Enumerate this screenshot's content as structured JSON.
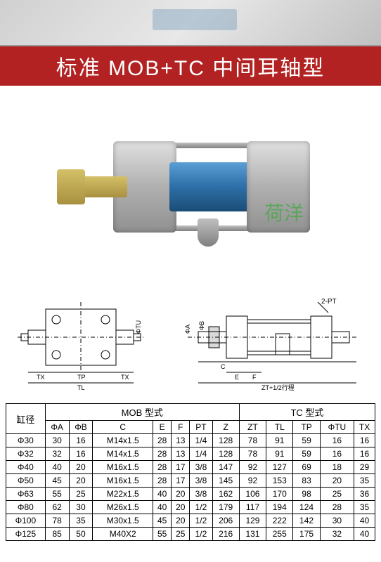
{
  "title": "标准 MOB+TC 中间耳轴型",
  "watermark": "荷洋",
  "diagram": {
    "pt_label": "2-PT",
    "left_dims": [
      "TX",
      "TP",
      "TX",
      "TL"
    ],
    "left_dia": [
      "ΦTU"
    ],
    "right_dims": [
      "ΦA",
      "ΦB",
      "C",
      "E",
      "F",
      "ZT+1/2行程"
    ]
  },
  "table": {
    "group1": "MOB 型式",
    "group2": "TC 型式",
    "corner": "缸径",
    "cols_mob": [
      "ΦA",
      "ΦB",
      "C",
      "E",
      "F",
      "PT",
      "Z"
    ],
    "cols_tc": [
      "ZT",
      "TL",
      "TP",
      "ΦTU",
      "TX"
    ],
    "rows": [
      {
        "label": "Φ30",
        "mob": [
          "30",
          "16",
          "M14x1.5",
          "28",
          "13",
          "1/4",
          "128"
        ],
        "tc": [
          "78",
          "91",
          "59",
          "16",
          "16"
        ]
      },
      {
        "label": "Φ32",
        "mob": [
          "32",
          "16",
          "M14x1.5",
          "28",
          "13",
          "1/4",
          "128"
        ],
        "tc": [
          "78",
          "91",
          "59",
          "16",
          "16"
        ]
      },
      {
        "label": "Φ40",
        "mob": [
          "40",
          "20",
          "M16x1.5",
          "28",
          "17",
          "3/8",
          "147"
        ],
        "tc": [
          "92",
          "127",
          "69",
          "18",
          "29"
        ]
      },
      {
        "label": "Φ50",
        "mob": [
          "45",
          "20",
          "M16x1.5",
          "28",
          "17",
          "3/8",
          "145"
        ],
        "tc": [
          "92",
          "153",
          "83",
          "20",
          "35"
        ]
      },
      {
        "label": "Φ63",
        "mob": [
          "55",
          "25",
          "M22x1.5",
          "40",
          "20",
          "3/8",
          "162"
        ],
        "tc": [
          "106",
          "170",
          "98",
          "25",
          "36"
        ]
      },
      {
        "label": "Φ80",
        "mob": [
          "62",
          "30",
          "M26x1.5",
          "40",
          "20",
          "1/2",
          "179"
        ],
        "tc": [
          "117",
          "194",
          "124",
          "28",
          "35"
        ]
      },
      {
        "label": "Φ100",
        "mob": [
          "78",
          "35",
          "M30x1.5",
          "45",
          "20",
          "1/2",
          "206"
        ],
        "tc": [
          "129",
          "222",
          "142",
          "30",
          "40"
        ]
      },
      {
        "label": "Φ125",
        "mob": [
          "85",
          "50",
          "M40X2",
          "55",
          "25",
          "1/2",
          "216"
        ],
        "tc": [
          "131",
          "255",
          "175",
          "32",
          "40"
        ]
      }
    ]
  },
  "style": {
    "title_bg": "#b22222",
    "title_color": "#ffffff",
    "watermark_color": "#4aa84a",
    "barrel_color": "#2d6fa8",
    "metal_color": "#b0b0b0",
    "brass_color": "#a89040",
    "border_color": "#000000",
    "bg": "#ffffff"
  }
}
